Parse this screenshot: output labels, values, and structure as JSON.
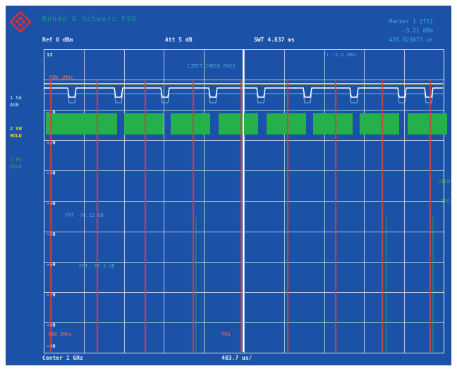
{
  "colors": {
    "background": "#1b52a8",
    "grid": "#cfd9ea",
    "trace1": "#ffffff",
    "trace2": "#f2d22a",
    "trace3": "#25b04a",
    "marker": "#d8403a",
    "text": "#e8eef8"
  },
  "icons": {
    "logo": "rohde-schwarz-diamond-icon"
  },
  "header": {
    "title": "Rohde & Schwarz FSU",
    "marker_line1": "Marker 1 [T1]",
    "marker_line2": "-3.21 dBm",
    "marker_line3": "476.923077 us",
    "ref": "Ref  0 dBm",
    "att": "Att  5 dB",
    "swt": "SWT  4.837 ms"
  },
  "traces_panel": {
    "t1_label": "1 SA",
    "t1_mode": "AVG",
    "t2_label": "2 VW",
    "t2_mode": "HOLD",
    "t3_label": "3 PK",
    "t3_mode": "MAXH"
  },
  "plot": {
    "top_label": "13",
    "y_labels": [
      "-10",
      "-20",
      "-30",
      "-40",
      "-50",
      "-60",
      "-70",
      "-80",
      "-90"
    ],
    "annotation_limit": "LIMIT CHECK  PASS",
    "annotation_mark": "T1 -3.2 dBm",
    "annotation_mid1": "FMT   -70.12   dB",
    "annotation_mid2": "FMT   -70.3   dB",
    "red_labels": [
      "RBW 1MHz",
      "VBW 3MHz",
      "TRG"
    ],
    "right_labels": [
      "VIEW",
      "TRG"
    ]
  },
  "footer": {
    "center": "Center 1 GHz",
    "span": "483.7 us/"
  }
}
